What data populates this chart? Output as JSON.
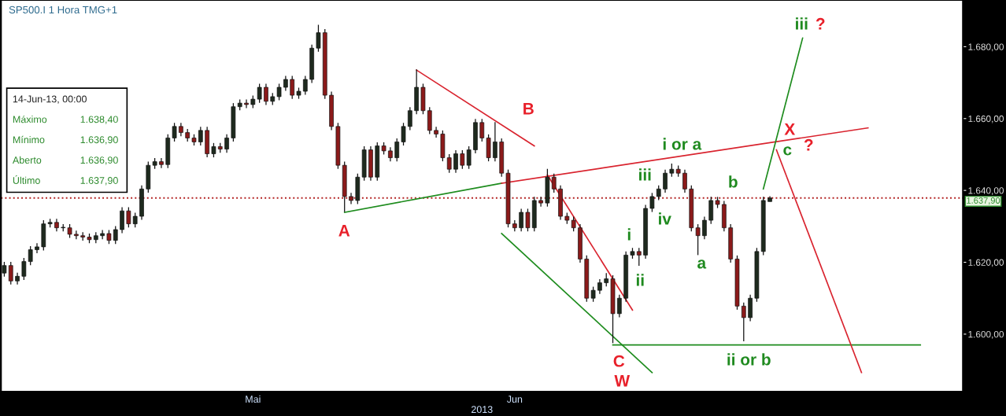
{
  "chart_data": {
    "type": "candlestick",
    "title": "SP500.I 1 Hora TMG+1",
    "xlabel": "2013",
    "categories": [
      null,
      null,
      null,
      null,
      null,
      null,
      null,
      null,
      null,
      null,
      null,
      null,
      null,
      null,
      null,
      null,
      null,
      null,
      null,
      null,
      null,
      null,
      null,
      null,
      null,
      null,
      null,
      null,
      null,
      null,
      null,
      null,
      null,
      null,
      null,
      null,
      null,
      null,
      "Mai",
      null,
      null,
      null,
      null,
      null,
      null,
      null,
      null,
      null,
      null,
      null,
      null,
      null,
      null,
      null,
      null,
      null,
      null,
      null,
      null,
      null,
      null,
      null,
      null,
      null,
      null,
      null,
      null,
      null,
      null,
      null,
      null,
      null,
      null,
      null,
      null,
      null,
      null,
      null,
      "Jun",
      null,
      null,
      null,
      null,
      null,
      null,
      null,
      null,
      null,
      null,
      null,
      null,
      null,
      null,
      null,
      null,
      null,
      null,
      null,
      null,
      null,
      null,
      null,
      null,
      null,
      null,
      null,
      null,
      null,
      null,
      null,
      null,
      null,
      null,
      null,
      null,
      null,
      null,
      null,
      null,
      null,
      null,
      null,
      null,
      null,
      null,
      null,
      null,
      null,
      null,
      null,
      null,
      null,
      null,
      null,
      null,
      null,
      null,
      null,
      null,
      null,
      null,
      null,
      null,
      null,
      null,
      null,
      null
    ],
    "ohlc": [
      [
        1617.0,
        1620.1,
        1616.0,
        1619.1
      ],
      [
        1619.1,
        1620.1,
        1613.8,
        1614.8
      ],
      [
        1614.8,
        1617.1,
        1613.8,
        1616.1
      ],
      [
        1616.1,
        1621.2,
        1615.1,
        1620.2
      ],
      [
        1620.2,
        1624.5,
        1619.2,
        1623.5
      ],
      [
        1623.5,
        1625.3,
        1622.5,
        1624.3
      ],
      [
        1624.3,
        1631.7,
        1623.3,
        1630.7
      ],
      [
        1630.7,
        1632.1,
        1629.7,
        1631.1
      ],
      [
        1631.1,
        1632.1,
        1628.6,
        1629.6
      ],
      [
        1629.6,
        1630.6,
        1628.6,
        1629.6
      ],
      [
        1629.6,
        1630.6,
        1626.8,
        1627.8
      ],
      [
        1627.8,
        1628.8,
        1626.4,
        1627.4
      ],
      [
        1627.4,
        1628.4,
        1626.0,
        1627.0
      ],
      [
        1627.0,
        1628.0,
        1625.3,
        1626.3
      ],
      [
        1626.3,
        1628.4,
        1625.3,
        1627.4
      ],
      [
        1627.4,
        1629.0,
        1626.4,
        1628.0
      ],
      [
        1628.0,
        1629.0,
        1625.1,
        1626.1
      ],
      [
        1626.1,
        1630.1,
        1625.1,
        1629.1
      ],
      [
        1629.1,
        1635.3,
        1628.1,
        1634.3
      ],
      [
        1634.3,
        1635.3,
        1629.7,
        1630.7
      ],
      [
        1630.7,
        1633.8,
        1629.7,
        1632.8
      ],
      [
        1632.8,
        1641.4,
        1631.8,
        1640.4
      ],
      [
        1640.4,
        1648.0,
        1639.4,
        1647.0
      ],
      [
        1647.0,
        1649.0,
        1646.0,
        1648.0
      ],
      [
        1648.0,
        1649.0,
        1646.2,
        1647.2
      ],
      [
        1647.2,
        1655.6,
        1646.2,
        1654.6
      ],
      [
        1654.6,
        1658.8,
        1653.6,
        1657.8
      ],
      [
        1657.8,
        1658.8,
        1655.1,
        1656.1
      ],
      [
        1656.1,
        1657.1,
        1653.6,
        1654.6
      ],
      [
        1654.6,
        1655.6,
        1652.5,
        1653.5
      ],
      [
        1653.5,
        1657.7,
        1652.5,
        1656.7
      ],
      [
        1656.7,
        1657.7,
        1649.2,
        1650.2
      ],
      [
        1650.2,
        1653.2,
        1649.2,
        1652.2
      ],
      [
        1652.2,
        1653.2,
        1650.5,
        1651.5
      ],
      [
        1651.5,
        1655.6,
        1650.5,
        1654.6
      ],
      [
        1654.6,
        1664.3,
        1653.6,
        1663.3
      ],
      [
        1663.3,
        1665.3,
        1662.3,
        1664.3
      ],
      [
        1664.3,
        1665.3,
        1662.9,
        1663.9
      ],
      [
        1663.9,
        1666.4,
        1662.9,
        1665.4
      ],
      [
        1665.4,
        1669.7,
        1664.4,
        1668.7
      ],
      [
        1668.7,
        1669.7,
        1663.8,
        1664.8
      ],
      [
        1664.8,
        1667.1,
        1663.8,
        1666.1
      ],
      [
        1666.1,
        1669.7,
        1665.1,
        1668.7
      ],
      [
        1668.7,
        1671.9,
        1667.7,
        1670.9
      ],
      [
        1670.9,
        1671.9,
        1665.5,
        1666.5
      ],
      [
        1666.5,
        1668.6,
        1665.5,
        1667.6
      ],
      [
        1667.6,
        1671.9,
        1666.6,
        1670.9
      ],
      [
        1670.9,
        1680.6,
        1669.9,
        1679.6
      ],
      [
        1679.6,
        1686.1,
        1678.6,
        1683.9
      ],
      [
        1683.9,
        1684.9,
        1665.5,
        1666.5
      ],
      [
        1666.5,
        1667.5,
        1656.8,
        1657.8
      ],
      [
        1657.8,
        1658.8,
        1646.0,
        1647.0
      ],
      [
        1647.0,
        1648.0,
        1634.0,
        1638.3
      ],
      [
        1638.3,
        1639.3,
        1636.2,
        1637.2
      ],
      [
        1637.2,
        1644.7,
        1636.2,
        1643.7
      ],
      [
        1643.7,
        1652.3,
        1642.7,
        1651.3
      ],
      [
        1651.3,
        1652.3,
        1642.7,
        1643.7
      ],
      [
        1643.7,
        1653.4,
        1642.7,
        1652.4
      ],
      [
        1652.4,
        1653.4,
        1650.0,
        1651.0
      ],
      [
        1651.0,
        1652.0,
        1648.1,
        1649.1
      ],
      [
        1649.1,
        1654.5,
        1648.1,
        1653.5
      ],
      [
        1653.5,
        1658.8,
        1652.5,
        1657.8
      ],
      [
        1657.8,
        1663.2,
        1656.8,
        1662.2
      ],
      [
        1662.2,
        1673.7,
        1661.2,
        1668.7
      ],
      [
        1668.7,
        1669.7,
        1661.2,
        1662.2
      ],
      [
        1662.2,
        1663.2,
        1655.7,
        1656.7
      ],
      [
        1656.7,
        1657.7,
        1654.7,
        1655.7
      ],
      [
        1655.7,
        1656.7,
        1648.1,
        1649.1
      ],
      [
        1649.1,
        1650.1,
        1644.9,
        1645.9
      ],
      [
        1645.9,
        1651.2,
        1644.9,
        1650.2
      ],
      [
        1650.2,
        1651.2,
        1646.0,
        1647.0
      ],
      [
        1647.0,
        1652.3,
        1646.0,
        1651.3
      ],
      [
        1651.3,
        1659.9,
        1650.3,
        1658.9
      ],
      [
        1658.9,
        1659.9,
        1653.6,
        1654.6
      ],
      [
        1654.6,
        1655.6,
        1648.1,
        1649.1
      ],
      [
        1649.1,
        1659.0,
        1648.1,
        1653.5
      ],
      [
        1653.5,
        1654.5,
        1643.8,
        1644.8
      ],
      [
        1644.8,
        1645.8,
        1629.7,
        1630.7
      ],
      [
        1630.7,
        1631.7,
        1628.6,
        1629.6
      ],
      [
        1629.6,
        1634.9,
        1628.6,
        1633.9
      ],
      [
        1633.9,
        1634.9,
        1628.6,
        1629.6
      ],
      [
        1629.6,
        1638.2,
        1628.6,
        1637.2
      ],
      [
        1637.2,
        1638.2,
        1635.5,
        1636.5
      ],
      [
        1636.5,
        1646.0,
        1635.5,
        1643.7
      ],
      [
        1643.7,
        1644.7,
        1639.4,
        1640.4
      ],
      [
        1640.4,
        1641.4,
        1631.8,
        1632.8
      ],
      [
        1632.8,
        1633.8,
        1630.7,
        1631.7
      ],
      [
        1631.7,
        1632.7,
        1628.6,
        1629.6
      ],
      [
        1629.6,
        1630.6,
        1619.9,
        1620.9
      ],
      [
        1620.9,
        1621.9,
        1609.0,
        1610.0
      ],
      [
        1610.0,
        1613.2,
        1609.0,
        1612.2
      ],
      [
        1612.2,
        1615.3,
        1611.2,
        1614.3
      ],
      [
        1614.3,
        1617.0,
        1613.3,
        1615.4
      ],
      [
        1615.4,
        1616.4,
        1597.5,
        1605.7
      ],
      [
        1605.7,
        1611.0,
        1604.7,
        1610.0
      ],
      [
        1610.0,
        1623.0,
        1609.0,
        1622.0
      ],
      [
        1622.0,
        1624.0,
        1621.0,
        1623.0
      ],
      [
        1623.0,
        1624.0,
        1619.0,
        1622.0
      ],
      [
        1622.0,
        1636.0,
        1621.0,
        1635.0
      ],
      [
        1635.0,
        1639.3,
        1634.0,
        1638.3
      ],
      [
        1638.3,
        1641.4,
        1637.3,
        1640.4
      ],
      [
        1640.4,
        1645.8,
        1639.4,
        1644.8
      ],
      [
        1644.8,
        1647.5,
        1643.8,
        1645.9
      ],
      [
        1645.9,
        1646.9,
        1643.8,
        1644.8
      ],
      [
        1644.8,
        1645.8,
        1639.4,
        1640.4
      ],
      [
        1640.4,
        1641.4,
        1628.6,
        1629.6
      ],
      [
        1629.6,
        1630.6,
        1622.0,
        1627.4
      ],
      [
        1627.4,
        1632.7,
        1626.4,
        1631.7
      ],
      [
        1631.7,
        1638.2,
        1630.7,
        1637.2
      ],
      [
        1637.2,
        1638.2,
        1635.1,
        1636.1
      ],
      [
        1636.1,
        1637.1,
        1628.6,
        1629.6
      ],
      [
        1629.6,
        1630.6,
        1619.9,
        1620.9
      ],
      [
        1620.9,
        1621.9,
        1606.8,
        1607.8
      ],
      [
        1607.8,
        1608.8,
        1598.0,
        1604.6
      ],
      [
        1604.6,
        1611.0,
        1603.6,
        1610.0
      ],
      [
        1610.0,
        1624.0,
        1609.0,
        1623.0
      ],
      [
        1623.0,
        1638.2,
        1622.0,
        1637.2
      ],
      [
        1636.9,
        1638.4,
        1636.9,
        1637.9
      ],
      null,
      null,
      null,
      null,
      null,
      null,
      null,
      null,
      null,
      null,
      null,
      null,
      null,
      null,
      null,
      null,
      null,
      null,
      null,
      null,
      null,
      null,
      null,
      null,
      null,
      null,
      null,
      null,
      null
    ],
    "colors": [
      "#1e2a1e",
      "#8b1a1a",
      "#1e2a1e",
      "#1e2a1e",
      "#1e2a1e",
      "#1e2a1e",
      "#1e2a1e",
      "#1e2a1e",
      "#8b1a1a",
      "#1e2a1e",
      "#8b1a1a",
      "#8b1a1a",
      "#8b1a1a",
      "#8b1a1a",
      "#1e2a1e",
      "#1e2a1e",
      "#8b1a1a",
      "#1e2a1e",
      "#1e2a1e",
      "#8b1a1a",
      "#1e2a1e",
      "#1e2a1e",
      "#1e2a1e",
      "#1e2a1e",
      "#8b1a1a",
      "#1e2a1e",
      "#1e2a1e",
      "#8b1a1a",
      "#8b1a1a",
      "#8b1a1a",
      "#1e2a1e",
      "#8b1a1a",
      "#1e2a1e",
      "#8b1a1a",
      "#1e2a1e",
      "#1e2a1e",
      "#1e2a1e",
      "#8b1a1a",
      "#1e2a1e",
      "#1e2a1e",
      "#8b1a1a",
      "#1e2a1e",
      "#1e2a1e",
      "#1e2a1e",
      "#8b1a1a",
      "#1e2a1e",
      "#1e2a1e",
      "#1e2a1e",
      "#1e2a1e",
      "#8b1a1a",
      "#8b1a1a",
      "#8b1a1a",
      "#8b1a1a",
      "#8b1a1a",
      "#1e2a1e",
      "#1e2a1e",
      "#8b1a1a",
      "#1e2a1e",
      "#8b1a1a",
      "#8b1a1a",
      "#1e2a1e",
      "#1e2a1e",
      "#1e2a1e",
      "#1e2a1e",
      "#8b1a1a",
      "#8b1a1a",
      "#8b1a1a",
      "#8b1a1a",
      "#8b1a1a",
      "#1e2a1e",
      "#8b1a1a",
      "#1e2a1e",
      "#1e2a1e",
      "#8b1a1a",
      "#8b1a1a",
      "#1e2a1e",
      "#8b1a1a",
      "#8b1a1a",
      "#8b1a1a",
      "#1e2a1e",
      "#8b1a1a",
      "#1e2a1e",
      "#8b1a1a",
      "#1e2a1e",
      "#8b1a1a",
      "#8b1a1a",
      "#8b1a1a",
      "#8b1a1a",
      "#8b1a1a",
      "#8b1a1a",
      "#1e2a1e",
      "#1e2a1e",
      "#1e2a1e",
      "#8b1a1a",
      "#1e2a1e",
      "#1e2a1e",
      "#1e2a1e",
      "#8b1a1a",
      "#1e2a1e",
      "#1e2a1e",
      "#1e2a1e",
      "#1e2a1e",
      "#1e2a1e",
      "#8b1a1a",
      "#8b1a1a",
      "#8b1a1a",
      "#8b1a1a",
      "#1e2a1e",
      "#1e2a1e",
      "#8b1a1a",
      "#8b1a1a",
      "#8b1a1a",
      "#8b1a1a",
      "#8b1a1a",
      "#1e2a1e",
      "#1e2a1e",
      "#1e2a1e",
      "#1e2a1e",
      null,
      null,
      null,
      null,
      null,
      null,
      null,
      null,
      null,
      null,
      null,
      null,
      null,
      null,
      null,
      null,
      null,
      null,
      null,
      null,
      null,
      null,
      null,
      null,
      null,
      null,
      null,
      null,
      null
    ],
    "series": [
      {
        "type": "line",
        "color": "#1e8c1e",
        "values": [
          null,
          null,
          null,
          null,
          null,
          null,
          null,
          null,
          null,
          null,
          null,
          null,
          null,
          null,
          null,
          null,
          null,
          null,
          null,
          null,
          null,
          null,
          null,
          null,
          null,
          null,
          null,
          null,
          null,
          null,
          null,
          null,
          null,
          null,
          null,
          null,
          null,
          null,
          null,
          null,
          null,
          null,
          null,
          null,
          null,
          null,
          null,
          null,
          null,
          null,
          null,
          null,
          1633.9,
          null,
          null,
          null,
          null,
          null,
          null,
          null,
          null,
          null,
          null,
          null,
          null,
          null,
          null,
          null,
          null,
          null,
          null,
          null,
          null,
          null,
          null,
          null,
          1642.0,
          null,
          null,
          null,
          null,
          null,
          null,
          null,
          null,
          null,
          null,
          null,
          null,
          null,
          null,
          null,
          null,
          null,
          null,
          null,
          null,
          null,
          null,
          null,
          null,
          null,
          null,
          null,
          null,
          null,
          null,
          null,
          null,
          null,
          null,
          null,
          null,
          null,
          null,
          null,
          null,
          null,
          null,
          null,
          null,
          null,
          null,
          null,
          null,
          null,
          null,
          null,
          null,
          null,
          null,
          null,
          null,
          null,
          null,
          null,
          null,
          null,
          null,
          null,
          null,
          null,
          null,
          null,
          null,
          null,
          null
        ]
      },
      {
        "type": "line",
        "color": "#d9232e",
        "values": [
          null,
          null,
          null,
          null,
          null,
          null,
          null,
          null,
          null,
          null,
          null,
          null,
          null,
          null,
          null,
          null,
          null,
          null,
          null,
          null,
          null,
          null,
          null,
          null,
          null,
          null,
          null,
          null,
          null,
          null,
          null,
          null,
          null,
          null,
          null,
          null,
          null,
          null,
          null,
          null,
          null,
          null,
          null,
          null,
          null,
          null,
          null,
          null,
          null,
          null,
          null,
          null,
          null,
          null,
          null,
          null,
          null,
          null,
          null,
          null,
          null,
          null,
          null,
          1673.5,
          null,
          null,
          null,
          null,
          null,
          null,
          null,
          null,
          null,
          null,
          null,
          null,
          null,
          null,
          null,
          null,
          null,
          1652.4,
          null,
          null,
          null,
          null,
          null,
          null,
          null,
          null,
          null,
          null,
          null,
          null,
          null,
          null,
          null,
          null,
          null,
          null,
          null,
          null,
          null,
          null,
          null,
          null,
          null,
          null,
          null,
          null,
          null,
          null,
          null,
          null,
          null,
          null,
          null,
          null,
          null,
          null,
          null,
          null,
          null,
          null,
          null,
          null,
          null,
          null,
          null,
          null,
          null,
          null,
          null,
          null,
          null,
          null,
          null,
          null,
          null,
          null,
          null,
          null,
          null,
          null,
          null,
          null,
          null
        ]
      },
      {
        "type": "line",
        "color": "#d9232e",
        "values": [
          null,
          null,
          null,
          null,
          null,
          null,
          null,
          null,
          null,
          null,
          null,
          null,
          null,
          null,
          null,
          null,
          null,
          null,
          null,
          null,
          null,
          null,
          null,
          null,
          null,
          null,
          null,
          null,
          null,
          null,
          null,
          null,
          null,
          null,
          null,
          null,
          null,
          null,
          null,
          null,
          null,
          null,
          null,
          null,
          null,
          null,
          null,
          null,
          null,
          null,
          null,
          null,
          null,
          null,
          null,
          null,
          null,
          null,
          null,
          null,
          null,
          null,
          null,
          null,
          null,
          null,
          null,
          null,
          null,
          null,
          null,
          null,
          null,
          null,
          null,
          null,
          1642.0,
          null,
          null,
          null,
          null,
          null,
          null,
          null,
          null,
          null,
          null,
          null,
          null,
          null,
          null,
          null,
          null,
          null,
          null,
          null,
          null,
          null,
          null,
          null,
          null,
          null,
          null,
          null,
          null,
          null,
          null,
          null,
          null,
          null,
          null,
          null,
          null,
          null,
          null,
          null,
          null,
          null,
          null,
          null,
          null,
          null,
          null,
          null,
          null,
          null,
          null,
          null,
          null,
          null,
          null,
          null,
          1657.4,
          null,
          null,
          null,
          null,
          null,
          null,
          null,
          null,
          null,
          null,
          null,
          null,
          null,
          null
        ]
      },
      {
        "type": "line",
        "color": "#1e8c1e",
        "values": [
          null,
          null,
          null,
          null,
          null,
          null,
          null,
          null,
          null,
          null,
          null,
          null,
          null,
          null,
          null,
          null,
          null,
          null,
          null,
          null,
          null,
          null,
          null,
          null,
          null,
          null,
          null,
          null,
          null,
          null,
          null,
          null,
          null,
          null,
          null,
          null,
          null,
          null,
          null,
          null,
          null,
          null,
          null,
          null,
          null,
          null,
          null,
          null,
          null,
          null,
          null,
          null,
          null,
          null,
          null,
          null,
          null,
          null,
          null,
          null,
          null,
          null,
          null,
          null,
          null,
          null,
          null,
          null,
          null,
          null,
          null,
          null,
          null,
          null,
          null,
          null,
          1628.0,
          null,
          null,
          null,
          null,
          null,
          null,
          null,
          null,
          null,
          null,
          null,
          null,
          null,
          null,
          null,
          null,
          null,
          null,
          null,
          null,
          null,
          null,
          1589.3,
          null,
          null,
          null,
          null,
          null,
          null,
          null,
          null,
          null,
          null,
          null,
          null,
          null,
          null,
          null,
          null,
          null,
          null,
          null,
          null,
          null,
          null,
          null,
          null,
          null,
          null,
          null,
          null,
          null,
          null,
          null,
          null,
          null,
          null,
          null,
          null,
          null,
          null,
          null,
          null,
          null,
          null,
          null,
          null,
          null,
          null,
          null
        ]
      },
      {
        "type": "line",
        "color": "#d9232e",
        "values": [
          null,
          null,
          null,
          null,
          null,
          null,
          null,
          null,
          null,
          null,
          null,
          null,
          null,
          null,
          null,
          null,
          null,
          null,
          null,
          null,
          null,
          null,
          null,
          null,
          null,
          null,
          null,
          null,
          null,
          null,
          null,
          null,
          null,
          null,
          null,
          null,
          null,
          null,
          null,
          null,
          null,
          null,
          null,
          null,
          null,
          null,
          null,
          null,
          null,
          null,
          null,
          null,
          null,
          null,
          null,
          null,
          null,
          null,
          null,
          null,
          null,
          null,
          null,
          null,
          null,
          null,
          null,
          null,
          null,
          null,
          null,
          null,
          null,
          null,
          null,
          null,
          null,
          null,
          null,
          null,
          null,
          null,
          null,
          1644.3,
          null,
          null,
          null,
          null,
          null,
          null,
          null,
          null,
          null,
          null,
          null,
          null,
          1606.7,
          null,
          null,
          null,
          null,
          null,
          null,
          null,
          null,
          null,
          null,
          null,
          null,
          null,
          null,
          null,
          null,
          null,
          null,
          null,
          null,
          null,
          null,
          null,
          null,
          null,
          null,
          null,
          null,
          null,
          null,
          null,
          null,
          null,
          null,
          null,
          null,
          null,
          null,
          null,
          null,
          null,
          null,
          null,
          null,
          null,
          null,
          null,
          null,
          null,
          null
        ]
      },
      {
        "type": "line",
        "color": "#1e8c1e",
        "values": [
          null,
          null,
          null,
          null,
          null,
          null,
          null,
          null,
          null,
          null,
          null,
          null,
          null,
          null,
          null,
          null,
          null,
          null,
          null,
          null,
          null,
          null,
          null,
          null,
          null,
          null,
          null,
          null,
          null,
          null,
          null,
          null,
          null,
          null,
          null,
          null,
          null,
          null,
          null,
          null,
          null,
          null,
          null,
          null,
          null,
          null,
          null,
          null,
          null,
          null,
          null,
          null,
          null,
          null,
          null,
          null,
          null,
          null,
          null,
          null,
          null,
          null,
          null,
          null,
          null,
          null,
          null,
          null,
          null,
          null,
          null,
          null,
          null,
          null,
          null,
          null,
          null,
          null,
          null,
          null,
          null,
          null,
          null,
          null,
          null,
          null,
          null,
          null,
          null,
          null,
          null,
          null,
          null,
          1597.0,
          null,
          null,
          null,
          null,
          null,
          null,
          null,
          null,
          null,
          null,
          null,
          null,
          null,
          null,
          null,
          null,
          null,
          null,
          null,
          null,
          null,
          null,
          null,
          null,
          null,
          null,
          null,
          null,
          null,
          null,
          null,
          null,
          null,
          null,
          null,
          null,
          null,
          null,
          null,
          null,
          null,
          null,
          null,
          null,
          null,
          null,
          1597.0,
          null,
          null,
          null,
          null,
          null,
          null
        ]
      },
      {
        "type": "line",
        "color": "#1e8c1e",
        "values": [
          null,
          null,
          null,
          null,
          null,
          null,
          null,
          null,
          null,
          null,
          null,
          null,
          null,
          null,
          null,
          null,
          null,
          null,
          null,
          null,
          null,
          null,
          null,
          null,
          null,
          null,
          null,
          null,
          null,
          null,
          null,
          null,
          null,
          null,
          null,
          null,
          null,
          null,
          null,
          null,
          null,
          null,
          null,
          null,
          null,
          null,
          null,
          null,
          null,
          null,
          null,
          null,
          null,
          null,
          null,
          null,
          null,
          null,
          null,
          null,
          null,
          null,
          null,
          null,
          null,
          null,
          null,
          null,
          null,
          null,
          null,
          null,
          null,
          null,
          null,
          null,
          null,
          null,
          null,
          null,
          null,
          null,
          null,
          null,
          null,
          null,
          null,
          null,
          null,
          null,
          null,
          null,
          null,
          null,
          null,
          null,
          null,
          null,
          null,
          null,
          null,
          null,
          null,
          null,
          null,
          null,
          null,
          null,
          null,
          null,
          null,
          null,
          null,
          null,
          null,
          null,
          1640.4,
          null,
          null,
          null,
          null,
          null,
          1682.4,
          null,
          null,
          null,
          null,
          null,
          null,
          null,
          null,
          null,
          null,
          null,
          null,
          null,
          null,
          null,
          null,
          null,
          null,
          null,
          null,
          null,
          null,
          null,
          null
        ]
      },
      {
        "type": "line",
        "color": "#d9232e",
        "values": [
          null,
          null,
          null,
          null,
          null,
          null,
          null,
          null,
          null,
          null,
          null,
          null,
          null,
          null,
          null,
          null,
          null,
          null,
          null,
          null,
          null,
          null,
          null,
          null,
          null,
          null,
          null,
          null,
          null,
          null,
          null,
          null,
          null,
          null,
          null,
          null,
          null,
          null,
          null,
          null,
          null,
          null,
          null,
          null,
          null,
          null,
          null,
          null,
          null,
          null,
          null,
          null,
          null,
          null,
          null,
          null,
          null,
          null,
          null,
          null,
          null,
          null,
          null,
          null,
          null,
          null,
          null,
          null,
          null,
          null,
          null,
          null,
          null,
          null,
          null,
          null,
          null,
          null,
          null,
          null,
          null,
          null,
          null,
          null,
          null,
          null,
          null,
          null,
          null,
          null,
          null,
          null,
          null,
          null,
          null,
          null,
          null,
          null,
          null,
          null,
          null,
          null,
          null,
          null,
          null,
          null,
          null,
          null,
          null,
          null,
          null,
          null,
          null,
          null,
          null,
          null,
          null,
          null,
          1651.3,
          null,
          null,
          null,
          null,
          null,
          null,
          null,
          null,
          null,
          null,
          null,
          null,
          1589.3,
          null,
          null,
          null,
          null,
          null,
          null,
          null,
          null,
          null,
          null,
          null,
          null,
          null,
          null,
          null
        ]
      }
    ],
    "ref_lines": [
      {
        "axis": "y",
        "value": 1637.9,
        "label": "1.637,90",
        "color": "#b22222",
        "line_style": "dotted"
      }
    ],
    "annotations": [
      "14-Jun-13, 00:00",
      "Máximo",
      "1.638,40",
      "Mínimo",
      "1.636,90",
      "Aberto",
      "1.636,90",
      "Último",
      "1.637,90",
      "A",
      "B",
      "C",
      "W",
      "i or a",
      "iii",
      "iv",
      "i",
      "ii",
      "a",
      "b",
      "ii or b",
      "c",
      "X",
      "?",
      "iii",
      "?"
    ],
    "ylim": [
      1584,
      1693
    ],
    "yticks": [
      {
        "value": 1600,
        "label": "1.600,00"
      },
      {
        "value": 1620,
        "label": "1.620,00"
      },
      {
        "value": 1640,
        "label": "1.640,00"
      },
      {
        "value": 1660,
        "label": "1.660,00"
      },
      {
        "value": 1680,
        "label": "1.680,00"
      }
    ],
    "grid": false
  }
}
